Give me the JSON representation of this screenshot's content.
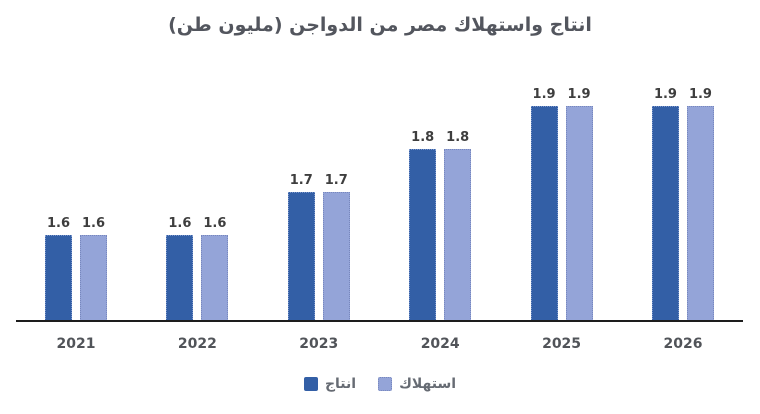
{
  "title": "انتاج واستهلاك مصر من الدواجن (مليون طن)",
  "colors": {
    "production_bar": "#335fa6",
    "consumption_bar": "#94a4d8",
    "axis_line": "#1d1d1d",
    "title_text": "#53565e",
    "value_label_text": "#3e3e3e",
    "background": "#ffffff"
  },
  "chart_data": {
    "type": "bar",
    "title": "انتاج واستهلاك مصر من الدواجن (مليون طن)",
    "categories": [
      "2021",
      "2022",
      "2023",
      "2024",
      "2025",
      "2026"
    ],
    "series": [
      {
        "name": "انتاج",
        "role": "production",
        "color": "#335fa6",
        "values": [
          1.6,
          1.6,
          1.7,
          1.8,
          1.9,
          1.9
        ]
      },
      {
        "name": "استهلاك",
        "role": "consumption",
        "color": "#94a4d8",
        "values": [
          1.6,
          1.6,
          1.7,
          1.8,
          1.9,
          1.9
        ]
      }
    ],
    "xlabel": "",
    "ylabel": "",
    "ylim": [
      1.4,
      2.0
    ],
    "grid": false,
    "y_axis_visible": false,
    "value_labels": true,
    "value_label_format": "0.0",
    "legend_position": "bottom"
  },
  "legend": {
    "production_label": "انتاج",
    "consumption_label": "استهلاك"
  }
}
